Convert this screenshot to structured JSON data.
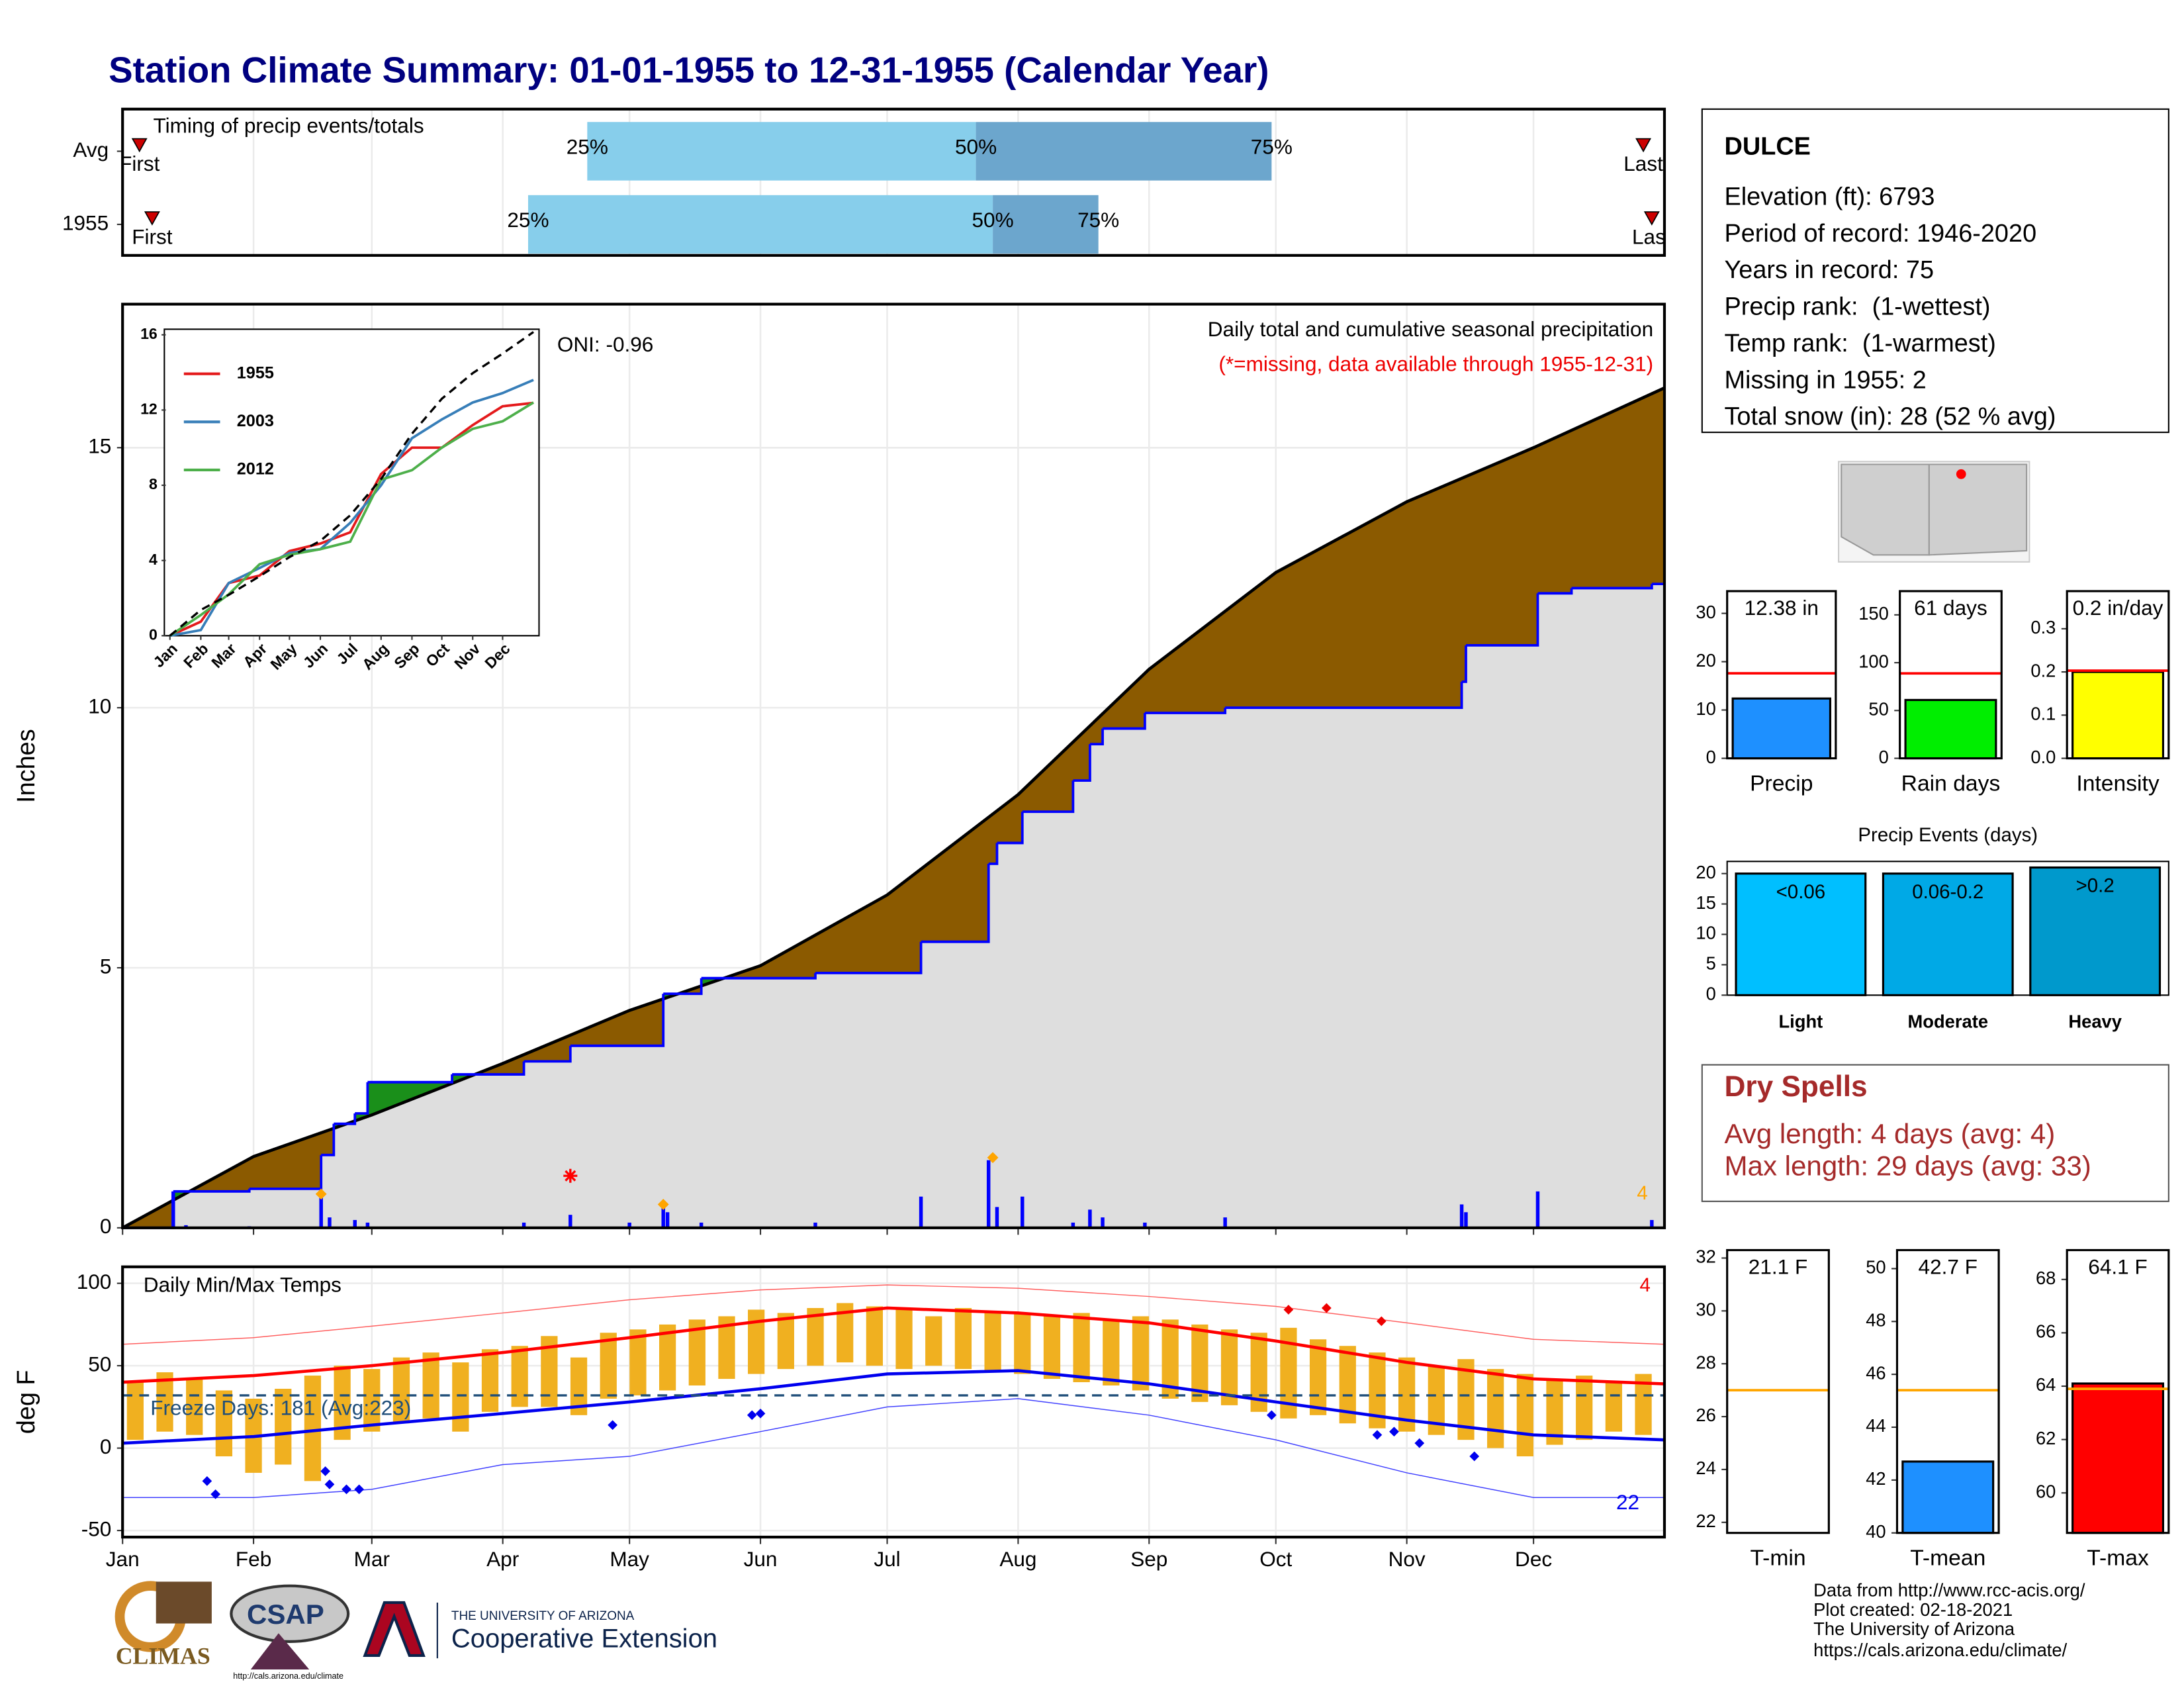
{
  "title": "Station Climate Summary: 01-01-1955 to 12-31-1955 (Calendar Year)",
  "chart_data": [
    {
      "type": "timing",
      "title": "Timing of precip events/totals",
      "categories": [
        "Avg",
        "1955"
      ],
      "xlim": [
        0,
        365
      ],
      "quartile_labels": [
        "25%",
        "50%",
        "75%"
      ],
      "quartiles": [
        [
          110,
          202,
          272
        ],
        [
          96,
          206,
          231
        ]
      ],
      "first_label": "First",
      "last_label": "Last",
      "first": [
        4,
        7
      ],
      "last": [
        360,
        362
      ],
      "colors": [
        "#87ceeb",
        "#6ca6cd"
      ],
      "marker_color": "#cc0000",
      "grid": true
    },
    {
      "type": "area",
      "title": "Daily total and cumulative seasonal precipitation",
      "subtitle": "(*=missing, data available through 1955-12-31)",
      "annotation": "ONI: -0.96",
      "corner_count": 4,
      "ylabel": "Inches",
      "xlim": [
        0,
        365
      ],
      "ylim": [
        0,
        17.76
      ],
      "yticks": [
        0,
        5,
        10,
        15
      ],
      "grid": true,
      "series": [
        {
          "color": "#000000",
          "x": [
            0,
            31,
            59,
            90,
            120,
            151,
            181,
            212,
            243,
            273,
            304,
            334,
            365
          ],
          "values": [
            0,
            1.37,
            2.17,
            3.16,
            4.18,
            5.04,
            6.4,
            8.33,
            10.74,
            12.6,
            13.96,
            15.0,
            16.15
          ]
        },
        {
          "color": "#0000ff",
          "step": true,
          "x": [
            0,
            12,
            30,
            47,
            50,
            55,
            58,
            78,
            95,
            106,
            128,
            137,
            164,
            189,
            205,
            207,
            213,
            225,
            229,
            232,
            242,
            261,
            317,
            318,
            335,
            343,
            362,
            365
          ],
          "values": [
            0,
            0.7,
            0.75,
            1.4,
            2.0,
            2.2,
            2.8,
            2.95,
            3.2,
            3.5,
            4.5,
            4.8,
            4.9,
            5.5,
            7.0,
            7.4,
            8.0,
            8.6,
            9.3,
            9.6,
            9.9,
            10.0,
            10.5,
            11.2,
            12.2,
            12.3,
            12.38,
            12.38
          ]
        }
      ],
      "fill_deficit": "#8b5a00",
      "fill_below": "#dedede",
      "fill_surplus": "#1a8f1a",
      "bars": {
        "color": "#0000ff",
        "x": [
          12,
          15,
          30,
          47,
          49,
          55,
          58,
          95,
          106,
          120,
          128,
          129,
          137,
          164,
          189,
          205,
          207,
          213,
          225,
          229,
          232,
          242,
          261,
          317,
          318,
          335,
          362
        ],
        "values": [
          0.7,
          0.05,
          0.03,
          0.6,
          0.2,
          0.15,
          0.1,
          0.1,
          0.25,
          0.1,
          0.45,
          0.3,
          0.1,
          0.1,
          0.6,
          1.3,
          0.4,
          0.6,
          0.1,
          0.35,
          0.2,
          0.1,
          0.2,
          0.45,
          0.3,
          0.7,
          0.15
        ]
      },
      "records": {
        "color": "#ffa500",
        "x": [
          47,
          128,
          206
        ],
        "values": [
          0.65,
          0.45,
          1.35
        ]
      },
      "missing": {
        "color": "#ff0000",
        "x": [
          106
        ],
        "values": [
          1.0
        ]
      }
    },
    {
      "type": "line",
      "xlim": [
        0,
        365
      ],
      "ylim": [
        0,
        16
      ],
      "yticks": [
        0,
        4,
        8,
        12,
        16
      ],
      "xticks": [
        {
          "value": 0,
          "label": "Jan"
        },
        {
          "value": 31,
          "label": "Feb"
        },
        {
          "value": 59,
          "label": "Mar"
        },
        {
          "value": 90,
          "label": "Apr"
        },
        {
          "value": 120,
          "label": "May"
        },
        {
          "value": 151,
          "label": "Jun"
        },
        {
          "value": 181,
          "label": "Jul"
        },
        {
          "value": 212,
          "label": "Aug"
        },
        {
          "value": 243,
          "label": "Sep"
        },
        {
          "value": 273,
          "label": "Oct"
        },
        {
          "value": 304,
          "label": "Nov"
        },
        {
          "value": 334,
          "label": "Dec"
        }
      ],
      "x": [
        0,
        31,
        59,
        90,
        120,
        151,
        181,
        212,
        243,
        273,
        304,
        334,
        365
      ],
      "series": [
        {
          "name": "1955",
          "color": "#e41a1c",
          "values": [
            0,
            0.75,
            2.8,
            3.2,
            4.5,
            4.9,
            5.5,
            8.6,
            10.0,
            10.0,
            11.2,
            12.2,
            12.38
          ]
        },
        {
          "name": "2003",
          "color": "#377eb8",
          "values": [
            0,
            0.3,
            2.8,
            3.6,
            4.4,
            4.6,
            6.0,
            8.0,
            10.5,
            11.5,
            12.4,
            12.9,
            13.6
          ]
        },
        {
          "name": "2012",
          "color": "#4daf4a",
          "values": [
            0,
            1.1,
            2.2,
            3.8,
            4.3,
            4.6,
            5.0,
            8.3,
            8.8,
            10.0,
            11.0,
            11.4,
            12.4
          ]
        }
      ],
      "reference": {
        "color": "#000000",
        "values": [
          0,
          1.37,
          2.17,
          3.16,
          4.18,
          5.04,
          6.4,
          8.33,
          10.74,
          12.6,
          13.96,
          15.0,
          16.15
        ]
      }
    },
    {
      "type": "temp",
      "title": "Daily Min/Max Temps",
      "annotation": "Freeze Days: 181 (Avg:223)",
      "ylabel": "deg F",
      "high_count": 4,
      "low_count": 22,
      "xlim": [
        0,
        365
      ],
      "ylim": [
        -54,
        110
      ],
      "yticks": [
        -50,
        0,
        50,
        100
      ],
      "grid": true,
      "xticks": [
        {
          "value": 0,
          "label": "Jan"
        },
        {
          "value": 31,
          "label": "Feb"
        },
        {
          "value": 59,
          "label": "Mar"
        },
        {
          "value": 90,
          "label": "Apr"
        },
        {
          "value": 120,
          "label": "May"
        },
        {
          "value": 151,
          "label": "Jun"
        },
        {
          "value": 181,
          "label": "Jul"
        },
        {
          "value": 212,
          "label": "Aug"
        },
        {
          "value": 243,
          "label": "Sep"
        },
        {
          "value": 273,
          "label": "Oct"
        },
        {
          "value": 304,
          "label": "Nov"
        },
        {
          "value": 334,
          "label": "Dec"
        }
      ],
      "freeze_line": 32,
      "freeze_color": "#1f4e79",
      "bars": {
        "color": "#f0b020",
        "x": [
          3,
          10,
          17,
          24,
          31,
          38,
          45,
          52,
          59,
          66,
          73,
          80,
          87,
          94,
          101,
          108,
          115,
          122,
          129,
          136,
          143,
          150,
          157,
          164,
          171,
          178,
          185,
          192,
          199,
          206,
          213,
          220,
          227,
          234,
          241,
          248,
          255,
          262,
          269,
          276,
          283,
          290,
          297,
          304,
          311,
          318,
          325,
          332,
          339,
          346,
          353,
          360
        ],
        "max": [
          40,
          46,
          42,
          35,
          30,
          36,
          44,
          50,
          48,
          55,
          58,
          52,
          60,
          62,
          68,
          55,
          70,
          72,
          75,
          78,
          80,
          84,
          82,
          85,
          88,
          86,
          84,
          80,
          85,
          83,
          82,
          80,
          82,
          78,
          80,
          78,
          75,
          72,
          70,
          73,
          66,
          62,
          58,
          55,
          50,
          54,
          48,
          45,
          42,
          44,
          40,
          45
        ],
        "min": [
          5,
          10,
          8,
          -5,
          -15,
          -10,
          -20,
          5,
          10,
          15,
          18,
          10,
          22,
          25,
          25,
          20,
          30,
          32,
          35,
          38,
          42,
          45,
          48,
          50,
          52,
          50,
          48,
          50,
          48,
          46,
          45,
          42,
          40,
          38,
          35,
          30,
          28,
          26,
          22,
          18,
          20,
          15,
          12,
          10,
          8,
          5,
          0,
          -5,
          2,
          5,
          10,
          8
        ]
      },
      "x": [
        0,
        31,
        59,
        90,
        120,
        151,
        181,
        212,
        243,
        273,
        304,
        334,
        365
      ],
      "series": [
        {
          "color": "#ff0000",
          "width": 2.2,
          "values": [
            40,
            44,
            50,
            58,
            67,
            77,
            85,
            82,
            76,
            65,
            52,
            42,
            39
          ]
        },
        {
          "color": "#0000ee",
          "width": 2.2,
          "values": [
            3,
            7,
            14,
            21,
            28,
            36,
            45,
            47,
            39,
            28,
            17,
            8,
            5
          ]
        },
        {
          "color": "#ff6060",
          "width": 0.7,
          "values": [
            63,
            67,
            74,
            82,
            90,
            96,
            99,
            97,
            92,
            86,
            76,
            66,
            63
          ]
        },
        {
          "color": "#4040ff",
          "width": 0.7,
          "values": [
            -30,
            -30,
            -25,
            -10,
            -5,
            10,
            25,
            30,
            20,
            5,
            -15,
            -30,
            -30
          ]
        }
      ],
      "record_highs": {
        "color": "#ee0000",
        "x": [
          276,
          285,
          298
        ],
        "values": [
          84,
          85,
          77
        ]
      },
      "record_lows": {
        "color": "#0000ee",
        "x": [
          20,
          22,
          48,
          49,
          53,
          56,
          116,
          149,
          151,
          272,
          297,
          301,
          307,
          320
        ],
        "values": [
          -20,
          -28,
          -14,
          -22,
          -25,
          -25,
          14,
          20,
          21,
          20,
          8,
          10,
          3,
          -5
        ]
      }
    },
    {
      "type": "summary_bar",
      "categories": [
        "Precip"
      ],
      "values": [
        12.38
      ],
      "value_labels": [
        "12.38 in"
      ],
      "color": "#1e90ff",
      "avg": 17.6,
      "avg_color": "#ff0000",
      "ylim": [
        0,
        34.6
      ],
      "yticks": [
        0,
        10,
        20,
        30
      ]
    },
    {
      "type": "summary_bar",
      "categories": [
        "Rain days"
      ],
      "values": [
        61
      ],
      "value_labels": [
        "61 days"
      ],
      "color": "#00ee00",
      "avg": 88.8,
      "avg_color": "#ff0000",
      "ylim": [
        0,
        174.8
      ],
      "yticks": [
        0,
        50,
        100,
        150
      ]
    },
    {
      "type": "summary_bar",
      "categories": [
        "Intensity"
      ],
      "values": [
        0.2
      ],
      "value_labels": [
        "0.2 in/day"
      ],
      "color": "#ffff00",
      "avg": 0.203,
      "avg_color": "#ff0000",
      "ylim": [
        0,
        0.387
      ],
      "yticks": [
        {
          "value": 0,
          "label": "0.0"
        },
        0.1,
        0.2,
        0.3
      ]
    },
    {
      "type": "bar",
      "title": "Precip Events (days)",
      "categories": [
        "Light",
        "Moderate",
        "Heavy"
      ],
      "values": [
        20,
        20,
        21
      ],
      "range_labels": [
        "<0.06",
        "0.06-0.2",
        ">0.2"
      ],
      "colors": [
        "#00bfff",
        "#00a9e6",
        "#0099cc"
      ],
      "ylim": [
        0,
        22
      ],
      "yticks": [
        0,
        5,
        10,
        15,
        20
      ]
    },
    {
      "type": "summary_bar",
      "categories": [
        "T-min"
      ],
      "values": [
        21.1
      ],
      "value_labels": [
        "21.1 F"
      ],
      "color": "#0000ff",
      "avg": 27,
      "avg_color": "#ffa500",
      "ylim": [
        21.6,
        32.3
      ],
      "yticks": [
        22,
        24,
        26,
        28,
        30,
        32
      ]
    },
    {
      "type": "summary_bar",
      "categories": [
        "T-mean"
      ],
      "values": [
        42.7
      ],
      "value_labels": [
        "42.7 F"
      ],
      "color": "#1e90ff",
      "avg": 45.4,
      "avg_color": "#ffa500",
      "ylim": [
        40,
        50.7
      ],
      "yticks": [
        40,
        42,
        44,
        46,
        48,
        50
      ]
    },
    {
      "type": "summary_bar",
      "categories": [
        "T-max"
      ],
      "values": [
        64.1
      ],
      "value_labels": [
        "64.1 F"
      ],
      "color": "#ff0000",
      "avg": 63.9,
      "avg_color": "#ffa500",
      "ylim": [
        58.5,
        69.1
      ],
      "yticks": [
        60,
        62,
        64,
        66,
        68
      ]
    }
  ],
  "station": {
    "name": "DULCE",
    "lines": [
      "Elevation (ft): 6793",
      "Period of record: 1946-2020",
      "Years in record: 75",
      "Precip rank:  (1-wettest)",
      "Temp rank:  (1-warmest)",
      "Missing in 1955: 2",
      "Total snow (in): 28 (52 % avg)"
    ]
  },
  "dry_spells": {
    "title": "Dry Spells",
    "lines": [
      "Avg length: 4 days (avg: 4)",
      "Max length: 29 days (avg: 33)"
    ]
  },
  "footer": {
    "credits": [
      "Data from http://www.rcc-acis.org/",
      "Plot created: 02-18-2021",
      "The University of Arizona",
      "https://cals.arizona.edu/climate/"
    ]
  },
  "logos": {
    "climas": "CLIMAS",
    "csap": "CSAP",
    "csap_url": "http://cals.arizona.edu/climate",
    "ua": "THE UNIVERSITY OF ARIZONA",
    "extension": "Cooperative Extension"
  }
}
